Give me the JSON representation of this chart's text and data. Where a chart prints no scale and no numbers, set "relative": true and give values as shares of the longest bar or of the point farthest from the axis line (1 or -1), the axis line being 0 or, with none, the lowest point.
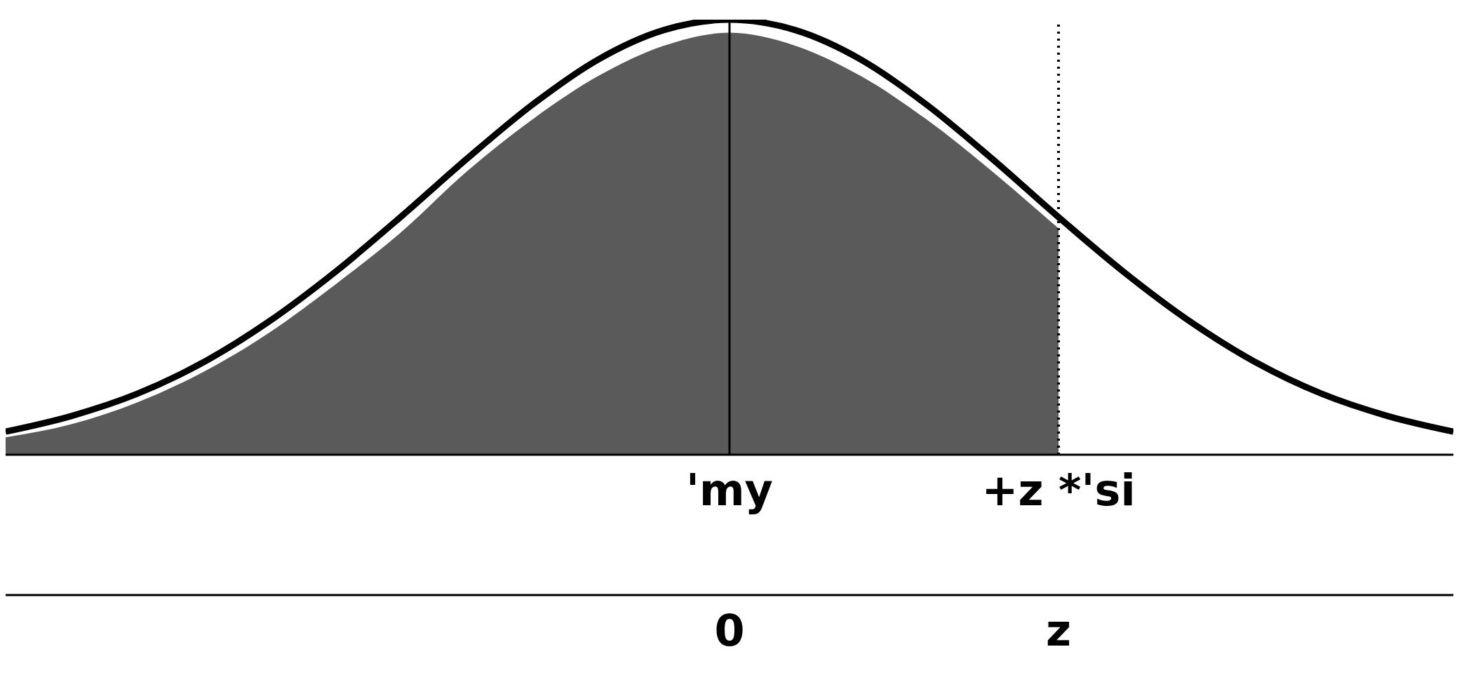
{
  "chart_data": {
    "type": "line",
    "relative": true,
    "categories": [
      null,
      null,
      null,
      null,
      null,
      null,
      null,
      null,
      null,
      null,
      null,
      "0",
      null,
      null,
      null,
      null,
      "z",
      null,
      null,
      null,
      null,
      null,
      null
    ],
    "annotations": [
      "'my",
      "+z *'si"
    ],
    "series": [
      {
        "type": "area",
        "color": "#5a5a5a",
        "values": [
          0.04,
          0.07,
          0.12,
          0.19,
          0.28,
          0.39,
          0.51,
          0.65,
          0.77,
          0.87,
          0.94,
          0.97,
          0.94,
          0.87,
          0.77,
          0.65,
          0.52,
          null,
          null,
          null,
          null,
          null,
          null
        ]
      },
      {
        "color": "#000000",
        "values": [
          0.053,
          0.089,
          0.14,
          0.212,
          0.306,
          0.419,
          0.546,
          0.679,
          0.804,
          0.908,
          0.976,
          1,
          0.976,
          0.908,
          0.804,
          0.679,
          0.546,
          0.419,
          0.306,
          0.212,
          0.14,
          0.089,
          0.053
        ]
      }
    ],
    "ref_lines": [
      {
        "axis": "x",
        "value": "0",
        "color": "#000000",
        "line_style": "solid"
      },
      {
        "axis": "x",
        "value": "z",
        "color": "#000000",
        "line_style": "dotted"
      }
    ],
    "grid": false,
    "legend": false,
    "marker": "none"
  }
}
